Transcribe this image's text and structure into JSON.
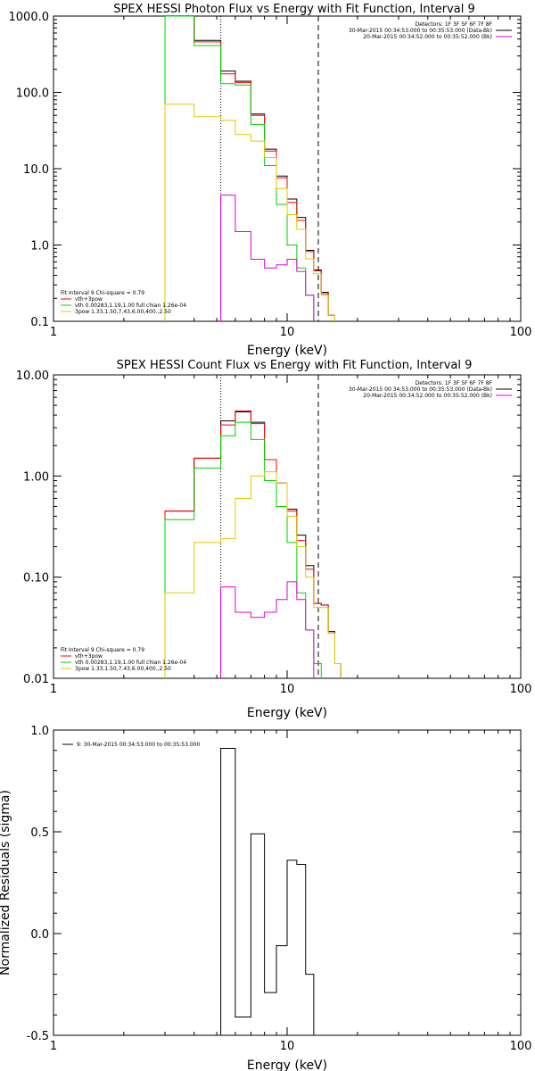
{
  "colors": {
    "black": "#000000",
    "red": "#ff0000",
    "green": "#00d400",
    "yellow": "#e6c800",
    "magenta": "#e000e0"
  },
  "chart_data": [
    {
      "type": "line",
      "title": "SPEX HESSI Photon Flux vs Energy with Fit Function, Interval 9",
      "xlabel": "Energy (keV)",
      "ylabel": "",
      "xscale": "log",
      "yscale": "log",
      "xlim": [
        1,
        100
      ],
      "ylim": [
        0.1,
        1000
      ],
      "xticks": [
        {
          "v": 1,
          "label": "1"
        },
        {
          "v": 10,
          "label": "10"
        },
        {
          "v": 100,
          "label": "100"
        }
      ],
      "yticks": [
        {
          "v": 1000,
          "label": "1000.0"
        },
        {
          "v": 100,
          "label": "100.0"
        },
        {
          "v": 10,
          "label": "10.0"
        },
        {
          "v": 1,
          "label": "1.0"
        },
        {
          "v": 0.1,
          "label": "0.1"
        }
      ],
      "vlines": [
        {
          "x": 5.2,
          "style": "dotted"
        },
        {
          "x": 13.6,
          "style": "dashed"
        }
      ],
      "legend_tr": [
        "Detectors: 1F 3F 5F 6F 7F 8F",
        "30-Mar-2015 00:34:53.000 to 00:35:53.000 (Data-Bk)",
        "20-Mar-2015 00:34:52.000 to 00:35:52.000 (Bk)"
      ],
      "legend_tr_colors": [
        "",
        "black",
        "magenta"
      ],
      "legend_bl": [
        "Fit Interval 9   Chi-square = 0.79",
        "vth+3pow",
        "vth 0.00283,1.19,1.00  full chian 1.26e-04",
        "3pow 1.33,1.50,7.43,6.00,400.,2.50"
      ],
      "legend_bl_colors": [
        "",
        "red",
        "green",
        "yellow"
      ],
      "edges": [
        3,
        4,
        5.2,
        6,
        7,
        8,
        9,
        10,
        11,
        12,
        13,
        14,
        15,
        16,
        17,
        18
      ],
      "series": [
        {
          "color": "black",
          "values": [
            1500,
            480,
            190,
            140,
            52,
            18,
            8,
            4.0,
            2.3,
            0.85,
            0.47,
            0.24,
            0.12,
            null,
            null
          ]
        },
        {
          "color": "red",
          "values": [
            1500,
            460,
            175,
            135,
            50,
            17,
            7.6,
            3.6,
            2.1,
            0.82,
            0.46,
            0.23,
            0.12,
            null,
            null
          ]
        },
        {
          "color": "green",
          "values": [
            1500,
            410,
            130,
            125,
            38,
            11,
            3.4,
            1.0,
            0.5,
            0.22,
            null,
            null,
            null,
            null,
            null
          ]
        },
        {
          "color": "yellow",
          "values": [
            70,
            48,
            43,
            28,
            23,
            14,
            5.5,
            2.5,
            1.6,
            0.66,
            0.42,
            0.22,
            0.12,
            null,
            null
          ]
        },
        {
          "color": "magenta",
          "values": [
            null,
            null,
            4.5,
            1.5,
            0.65,
            0.5,
            0.55,
            0.65,
            0.45,
            0.22,
            null,
            null,
            null,
            null,
            null
          ]
        }
      ]
    },
    {
      "type": "line",
      "title": "SPEX HESSI Count Flux vs Energy with Fit Function, Interval 9",
      "xlabel": "Energy (keV)",
      "ylabel": "",
      "xscale": "log",
      "yscale": "log",
      "xlim": [
        1,
        100
      ],
      "ylim": [
        0.01,
        10
      ],
      "xticks": [
        {
          "v": 1,
          "label": "1"
        },
        {
          "v": 10,
          "label": "10"
        },
        {
          "v": 100,
          "label": "100"
        }
      ],
      "yticks": [
        {
          "v": 10,
          "label": "10.00"
        },
        {
          "v": 1,
          "label": "1.00"
        },
        {
          "v": 0.1,
          "label": "0.10"
        },
        {
          "v": 0.01,
          "label": "0.01"
        }
      ],
      "vlines": [
        {
          "x": 5.2,
          "style": "dotted"
        },
        {
          "x": 13.6,
          "style": "dashed"
        }
      ],
      "legend_tr": [
        "Detectors: 1F 3F 5F 6F 7F 8F",
        "30-Mar-2015 00:34:53.000 to 00:35:53.000 (Data-Bk)",
        "20-Mar-2015 00:34:52.000 to 00:35:52.000 (Bk)"
      ],
      "legend_tr_colors": [
        "",
        "black",
        "magenta"
      ],
      "legend_bl": [
        "Fit Interval 9   Chi-square = 0.79",
        "vth+3pow",
        "vth 0.00283,1.19,1.00  full chian 1.26e-04",
        "3pow 1.33,1.50,7.43,6.00,400.,2.50"
      ],
      "legend_bl_colors": [
        "",
        "red",
        "green",
        "yellow"
      ],
      "edges": [
        3,
        4,
        5.2,
        6,
        7,
        8,
        9,
        10,
        11,
        12,
        13,
        14,
        15,
        16,
        17,
        18
      ],
      "series": [
        {
          "color": "black",
          "values": [
            0.45,
            1.5,
            3.5,
            4.3,
            3.4,
            1.45,
            0.85,
            0.47,
            0.26,
            0.13,
            0.055,
            0.053,
            0.029,
            0.014,
            null
          ]
        },
        {
          "color": "red",
          "values": [
            0.45,
            1.5,
            3.2,
            4.4,
            3.3,
            1.45,
            0.85,
            0.45,
            0.23,
            0.12,
            0.055,
            0.053,
            0.028,
            0.014,
            null
          ]
        },
        {
          "color": "green",
          "values": [
            0.37,
            1.2,
            2.5,
            3.4,
            2.3,
            0.9,
            0.5,
            0.22,
            0.07,
            0.03,
            0.014,
            null,
            null,
            null,
            null
          ]
        },
        {
          "color": "yellow",
          "values": [
            0.07,
            0.22,
            0.24,
            0.6,
            1.0,
            1.1,
            0.85,
            0.4,
            0.2,
            0.1,
            0.05,
            0.05,
            0.028,
            0.014,
            null
          ]
        },
        {
          "color": "magenta",
          "values": [
            null,
            null,
            0.08,
            0.045,
            0.04,
            0.045,
            0.06,
            0.09,
            0.06,
            0.03,
            null,
            null,
            null,
            null,
            null
          ]
        }
      ]
    },
    {
      "type": "line",
      "title": "",
      "xlabel": "Energy (keV)",
      "ylabel": "Normalized Residuals (sigma)",
      "xscale": "log",
      "yscale": "linear",
      "xlim": [
        1,
        100
      ],
      "ylim": [
        -0.5,
        1.0
      ],
      "xticks": [
        {
          "v": 1,
          "label": "1"
        },
        {
          "v": 10,
          "label": "10"
        },
        {
          "v": 100,
          "label": "100"
        }
      ],
      "yticks": [
        {
          "v": 1.0,
          "label": "1.0"
        },
        {
          "v": 0.5,
          "label": "0.5"
        },
        {
          "v": 0.0,
          "label": "0.0"
        },
        {
          "v": -0.5,
          "label": "-0.5"
        }
      ],
      "legend_tl": "9: 30-Mar-2015 00:34:53.000 to 00:35:53.000",
      "edges": [
        5.2,
        6,
        7,
        8,
        9,
        10,
        11,
        12,
        13,
        14
      ],
      "series": [
        {
          "color": "black",
          "values": [
            0.91,
            -0.41,
            0.49,
            -0.29,
            -0.06,
            0.36,
            0.34,
            -0.2,
            -0.5
          ]
        }
      ]
    }
  ]
}
